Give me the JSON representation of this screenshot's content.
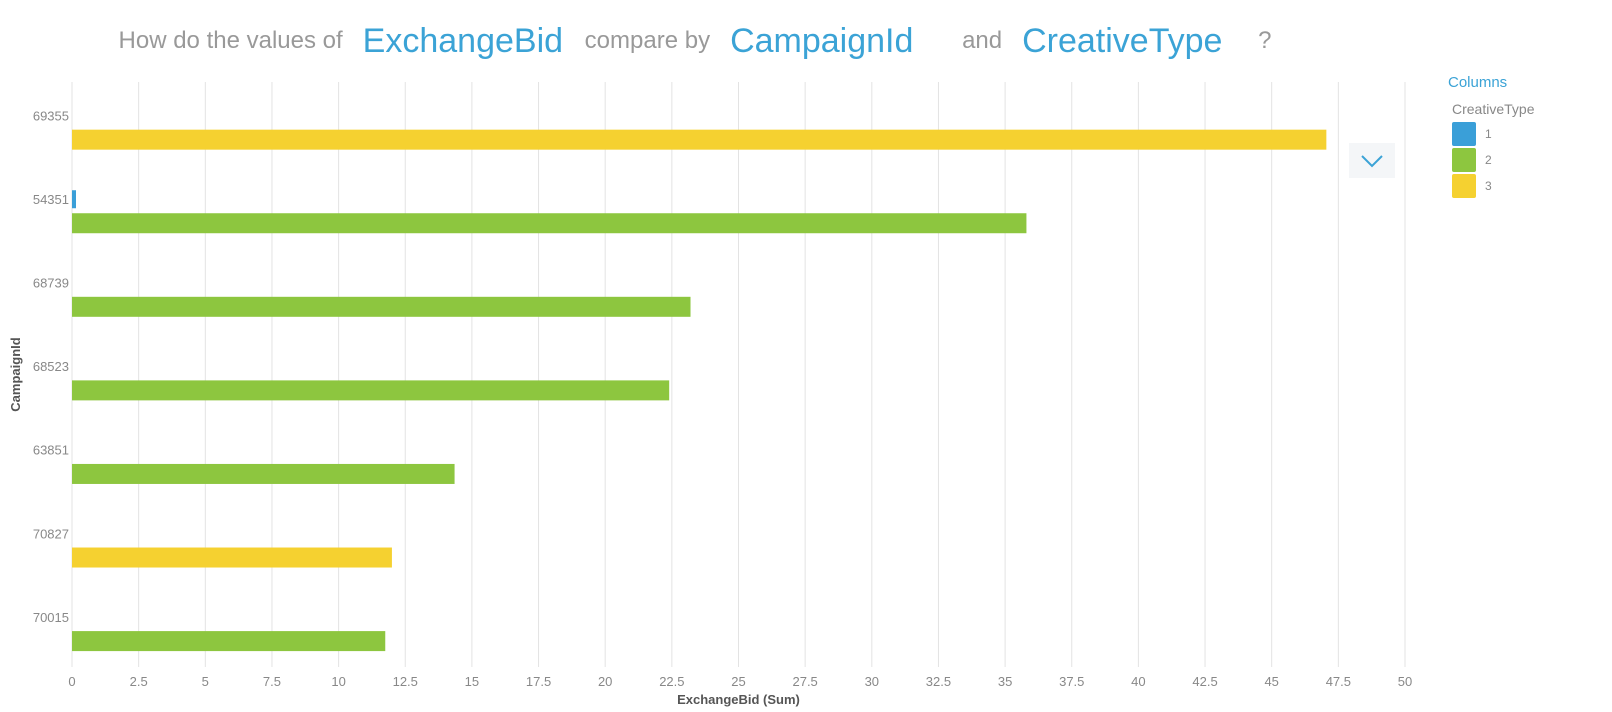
{
  "question": {
    "prefix": "How do the values of",
    "measure": "ExchangeBid",
    "mid": "compare by",
    "dimension1": "CampaignId",
    "conj": "and",
    "dimension2": "CreativeType",
    "suffix": "?"
  },
  "legend": {
    "header": "Columns",
    "title": "CreativeType",
    "items": [
      {
        "label": "1",
        "color": "#3a9fd8"
      },
      {
        "label": "2",
        "color": "#8dc63f"
      },
      {
        "label": "3",
        "color": "#f5d130"
      }
    ]
  },
  "icons": {
    "menu_toggle": "chevron-down-icon"
  },
  "chart_data": {
    "type": "bar",
    "orientation": "horizontal",
    "xlabel": "ExchangeBid (Sum)",
    "ylabel": "CampaignId",
    "xlim": [
      0,
      50
    ],
    "xticks": [
      "0",
      "2.5",
      "5",
      "7.5",
      "10",
      "12.5",
      "15",
      "17.5",
      "20",
      "22.5",
      "25",
      "27.5",
      "30",
      "32.5",
      "35",
      "37.5",
      "40",
      "42.5",
      "45",
      "47.5",
      "50"
    ],
    "grid": true,
    "legend_position": "right",
    "categories": [
      "69355",
      "54351",
      "68739",
      "68523",
      "63851",
      "70827",
      "70015"
    ],
    "series": [
      {
        "name": "1",
        "color": "#3a9fd8",
        "values": [
          null,
          0.15,
          null,
          null,
          null,
          null,
          null
        ]
      },
      {
        "name": "2",
        "color": "#8dc63f",
        "values": [
          null,
          35.8,
          23.2,
          22.4,
          14.35,
          null,
          11.75
        ]
      },
      {
        "name": "3",
        "color": "#f5d130",
        "values": [
          47.05,
          null,
          null,
          null,
          null,
          12.0,
          null
        ]
      }
    ]
  }
}
